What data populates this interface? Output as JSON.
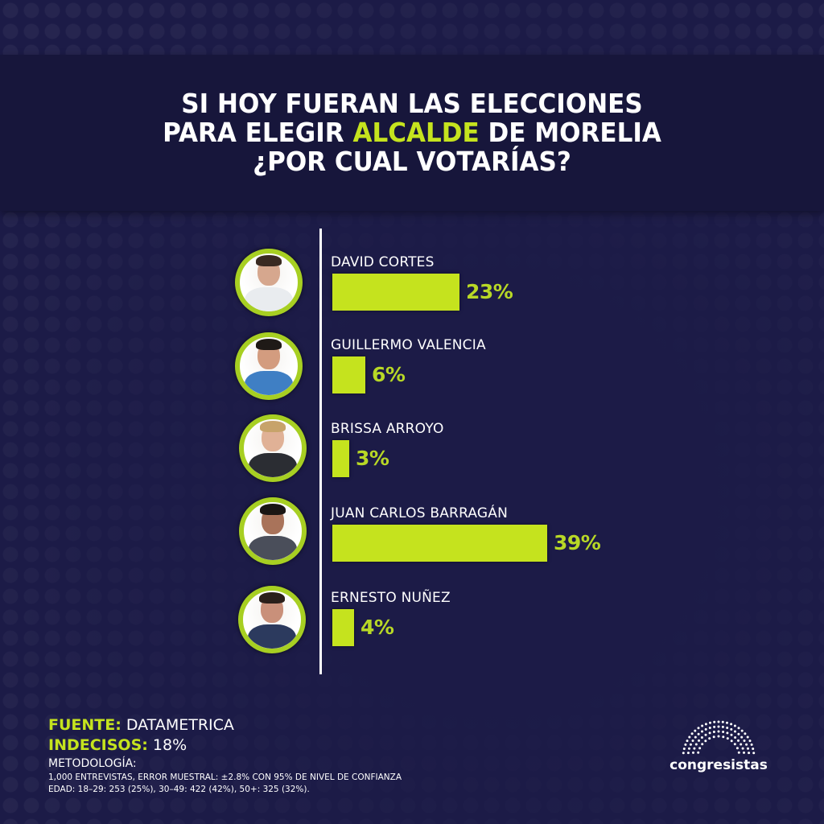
{
  "header": {
    "title_line1": "SI HOY FUERAN LAS ELECCIONES",
    "title_line2_pre": "PARA ELEGIR ",
    "title_line2_highlight": "ALCALDE",
    "title_line2_post": " DE MORELIA",
    "title_line3": "¿POR CUAL VOTARÍAS?"
  },
  "colors": {
    "background": "#1c1b47",
    "header_band": "#17163b",
    "accent": "#c5e31e",
    "avatar_ring": "#a7cf22"
  },
  "chart_data": {
    "type": "bar",
    "orientation": "horizontal",
    "title": "SI HOY FUERAN LAS ELECCIONES PARA ELEGIR ALCALDE DE MORELIA ¿POR CUAL VOTARÍAS?",
    "categories": [
      "DAVID CORTES",
      "GUILLERMO VALENCIA",
      "BRISSA ARROYO",
      "JUAN CARLOS BARRAGÁN",
      "ERNESTO NUÑEZ"
    ],
    "values": [
      23,
      6,
      3,
      39,
      4
    ],
    "labels": [
      "23%",
      "6%",
      "3%",
      "39%",
      "4%"
    ],
    "unit": "%",
    "xlim": [
      0,
      40
    ],
    "grid": false,
    "legend": "none"
  },
  "candidates": [
    {
      "name": "DAVID CORTES",
      "value": 23,
      "label": "23%",
      "shirt": "#e9ecef",
      "skin": "#d6a78e",
      "hair": "#3a2a22"
    },
    {
      "name": "GUILLERMO VALENCIA",
      "value": 6,
      "label": "6%",
      "shirt": "#3f7fc4",
      "skin": "#d39c7f",
      "hair": "#1f1a17"
    },
    {
      "name": "BRISSA ARROYO",
      "value": 3,
      "label": "3%",
      "shirt": "#2b2d33",
      "skin": "#e0b196",
      "hair": "#c7a36a"
    },
    {
      "name": "JUAN CARLOS BARRAGÁN",
      "value": 39,
      "label": "39%",
      "shirt": "#4a4e5a",
      "skin": "#a9735a",
      "hair": "#1a1614"
    },
    {
      "name": "ERNESTO NUÑEZ",
      "value": 4,
      "label": "4%",
      "shirt": "#2c3a5e",
      "skin": "#c9907a",
      "hair": "#2a1f1a"
    }
  ],
  "footer": {
    "source_label": "FUENTE:",
    "source_value": " DATAMETRICA",
    "undecided_label": "INDECISOS:",
    "undecided_value": " 18%",
    "methodology_title": "METODOLOGÍA:",
    "methodology_line1": "1,000 ENTREVISTAS, ERROR MUESTRAL: ±2.8% CON 95% DE NIVEL DE CONFIANZA",
    "methodology_line2": "EDAD: 18–29: 253 (25%), 30–49: 422 (42%), 50+: 325 (32%)."
  },
  "logo": {
    "text": "congresistas"
  }
}
